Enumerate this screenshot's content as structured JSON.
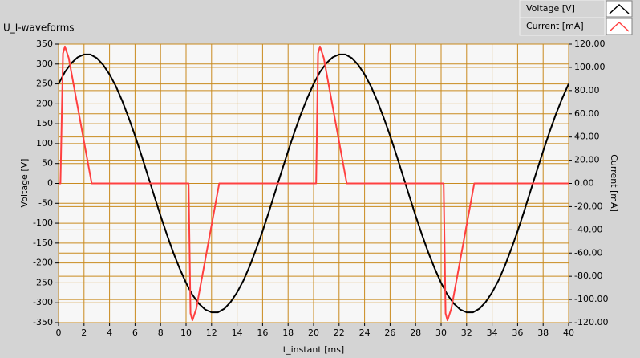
{
  "chart_data": {
    "type": "line",
    "title": "U_I-waveforms",
    "x_label": "t_instant [ms]",
    "y_label": "Voltage [V]",
    "y2_label": "Current [mA]",
    "xlim": [
      0,
      40
    ],
    "xticks": [
      0,
      2,
      4,
      6,
      8,
      10,
      12,
      14,
      16,
      18,
      20,
      22,
      24,
      26,
      28,
      30,
      32,
      34,
      36,
      38,
      40
    ],
    "ylim": [
      -350,
      350
    ],
    "yticks": [
      350,
      300,
      250,
      200,
      150,
      100,
      50,
      0,
      -50,
      -100,
      -150,
      -200,
      -250,
      -300,
      -350
    ],
    "y2lim": [
      -120,
      120
    ],
    "y2ticks": [
      {
        "value": 120,
        "label": "120.00"
      },
      {
        "value": 100,
        "label": "100.00"
      },
      {
        "value": 80,
        "label": "80.00"
      },
      {
        "value": 60,
        "label": "60.00"
      },
      {
        "value": 40,
        "label": "40.00"
      },
      {
        "value": 20,
        "label": "20.00"
      },
      {
        "value": 0,
        "label": "0.00"
      },
      {
        "value": -20,
        "label": "-20.00"
      },
      {
        "value": -40,
        "label": "-40.00"
      },
      {
        "value": -60,
        "label": "-60.00"
      },
      {
        "value": -80,
        "label": "-80.00"
      },
      {
        "value": -100,
        "label": "-100.00"
      },
      {
        "value": -120,
        "label": "-120.00"
      }
    ],
    "grid": true,
    "legend": "top-right",
    "series": [
      {
        "name": "Voltage [V]",
        "color": "#000000",
        "x": [
          0,
          0.5,
          1,
          1.5,
          2,
          2.5,
          3,
          3.5,
          4,
          4.5,
          5,
          5.5,
          6,
          6.5,
          7,
          7.5,
          8,
          8.5,
          9,
          9.5,
          10,
          10.5,
          11,
          11.5,
          12,
          12.5,
          13,
          13.5,
          14,
          14.5,
          15,
          15.5,
          16,
          16.5,
          17,
          17.5,
          18,
          18.5,
          19,
          19.5,
          20,
          20.5,
          21,
          21.5,
          22,
          22.5,
          23,
          23.5,
          24,
          24.5,
          25,
          25.5,
          26,
          26.5,
          27,
          27.5,
          28,
          28.5,
          29,
          29.5,
          30,
          30.5,
          31,
          31.5,
          32,
          32.5,
          33,
          33.5,
          34,
          34.5,
          35,
          35.5,
          36,
          36.5,
          37,
          37.5,
          38,
          38.5,
          39,
          39.5,
          40
        ],
        "values": [
          250,
          280,
          302,
          317,
          324,
          324,
          315,
          298,
          274,
          244,
          207,
          165,
          120,
          71,
          20,
          -31,
          -81,
          -129,
          -174,
          -214,
          -250,
          -280,
          -302,
          -317,
          -324,
          -324,
          -315,
          -298,
          -274,
          -244,
          -207,
          -165,
          -120,
          -71,
          -20,
          31,
          81,
          129,
          174,
          214,
          250,
          280,
          302,
          317,
          324,
          324,
          315,
          298,
          274,
          244,
          207,
          165,
          120,
          71,
          20,
          -31,
          -81,
          -129,
          -174,
          -214,
          -250,
          -280,
          -302,
          -317,
          -324,
          -324,
          -315,
          -298,
          -274,
          -244,
          -207,
          -165,
          -120,
          -71,
          -20,
          31,
          81,
          129,
          174,
          214,
          250
        ]
      },
      {
        "name": "Current [mA]",
        "color": "#ff4040",
        "axis": "y2",
        "x": [
          0,
          0.15,
          0.35,
          0.5,
          0.8,
          2.6,
          10.2,
          10.35,
          10.5,
          10.8,
          12.6,
          20.2,
          20.35,
          20.5,
          20.8,
          22.6,
          30.2,
          30.35,
          30.5,
          30.8,
          32.6,
          40
        ],
        "values": [
          0,
          0,
          112,
          118,
          108,
          0,
          0,
          -112,
          -118,
          -108,
          0,
          0,
          112,
          118,
          108,
          0,
          0,
          -112,
          -118,
          -108,
          0,
          0
        ]
      }
    ]
  }
}
